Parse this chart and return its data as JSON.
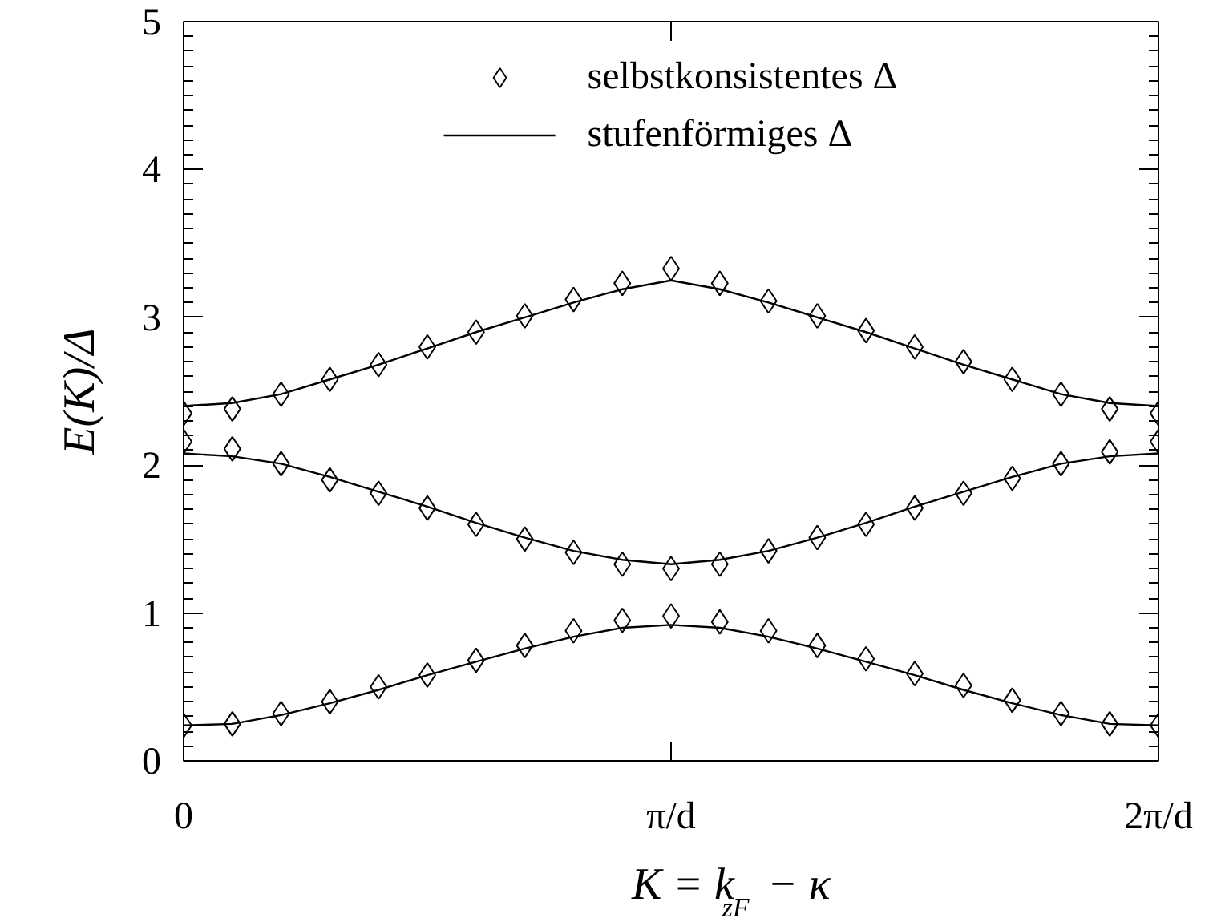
{
  "chart_data": {
    "type": "line",
    "xlabel": "K = k$_{zF}$ − κ",
    "ylabel": "E(K)/Δ",
    "x": [
      0,
      0.1,
      0.2,
      0.3,
      0.4,
      0.5,
      0.6,
      0.7,
      0.8,
      0.9,
      1.0,
      1.1,
      1.2,
      1.3,
      1.4,
      1.5,
      1.6,
      1.7,
      1.8,
      1.9,
      2.0
    ],
    "xlim": [
      0,
      2
    ],
    "xticks": [
      0,
      {
        "value": 1,
        "label": "π/d"
      },
      {
        "value": 2,
        "label": "2π/d"
      }
    ],
    "ylim": [
      0,
      5
    ],
    "yticks": [
      0,
      1,
      2,
      3,
      4,
      5
    ],
    "grid": false,
    "legend": "top",
    "series": [
      {
        "name": "selbstkonsistentes Δ",
        "type": "scatter",
        "marker": "diamond",
        "color": "#000000",
        "values": [
          2.35,
          2.38,
          2.48,
          2.58,
          2.68,
          2.8,
          2.9,
          3.01,
          3.12,
          3.23,
          3.33,
          3.23,
          3.11,
          3.01,
          2.91,
          2.8,
          2.7,
          2.58,
          2.48,
          2.38,
          2.35
        ]
      },
      {
        "type": "scatter",
        "marker": "diamond",
        "color": "#000000",
        "values": [
          2.16,
          2.11,
          2.01,
          1.9,
          1.81,
          1.71,
          1.6,
          1.5,
          1.41,
          1.33,
          1.3,
          1.33,
          1.42,
          1.51,
          1.6,
          1.71,
          1.81,
          1.91,
          2.01,
          2.09,
          2.16
        ]
      },
      {
        "type": "scatter",
        "marker": "diamond",
        "color": "#000000",
        "values": [
          0.24,
          0.25,
          0.32,
          0.4,
          0.5,
          0.58,
          0.68,
          0.78,
          0.88,
          0.95,
          0.98,
          0.94,
          0.88,
          0.78,
          0.69,
          0.59,
          0.51,
          0.41,
          0.32,
          0.25,
          0.24
        ]
      },
      {
        "name": "stufenförmiges Δ",
        "color": "#000000",
        "values": [
          2.4,
          2.42,
          2.48,
          2.58,
          2.68,
          2.79,
          2.9,
          3.0,
          3.1,
          3.19,
          3.25,
          3.19,
          3.1,
          3.0,
          2.9,
          2.79,
          2.68,
          2.58,
          2.48,
          2.42,
          2.4
        ]
      },
      {
        "color": "#000000",
        "values": [
          2.08,
          2.06,
          2.01,
          1.92,
          1.82,
          1.72,
          1.61,
          1.51,
          1.42,
          1.36,
          1.33,
          1.36,
          1.42,
          1.51,
          1.61,
          1.72,
          1.82,
          1.92,
          2.01,
          2.06,
          2.08
        ]
      },
      {
        "color": "#000000",
        "values": [
          0.24,
          0.25,
          0.31,
          0.39,
          0.48,
          0.58,
          0.67,
          0.76,
          0.84,
          0.9,
          0.92,
          0.9,
          0.84,
          0.76,
          0.67,
          0.58,
          0.48,
          0.39,
          0.31,
          0.25,
          0.24
        ]
      }
    ]
  }
}
